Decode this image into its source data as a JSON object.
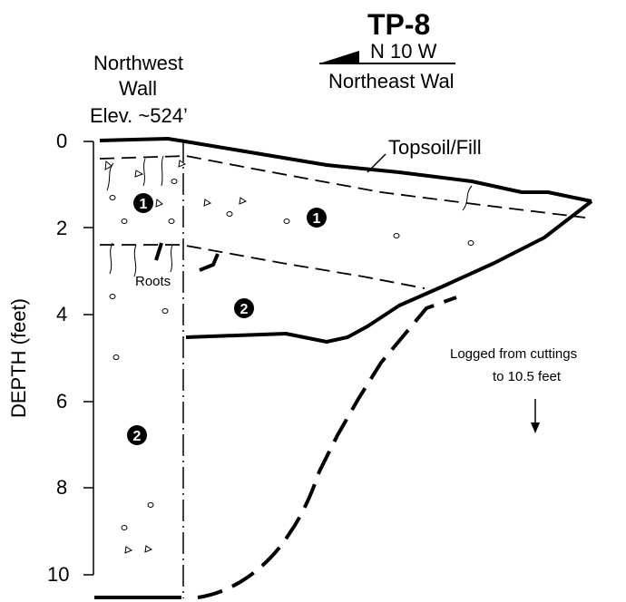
{
  "title": "TP-8",
  "orientation": {
    "bearing": "N 10 W",
    "wall": "Northeast Wal"
  },
  "left_wall": {
    "line1": "Northwest",
    "line2": "Wall",
    "elevation": "Elev. ~524’"
  },
  "axis": {
    "label": "DEPTH (feet)",
    "ticks": [
      "0",
      "2",
      "4",
      "6",
      "8",
      "10"
    ]
  },
  "annotations": {
    "topsoil": "Topsoil/Fill",
    "roots": "Roots",
    "cuttings_line1": "Logged from cuttings",
    "cuttings_line2": "to 10.5 feet"
  },
  "units": {
    "unit1": "1",
    "unit2": "2"
  },
  "colors": {
    "ink": "#000000",
    "paper": "#ffffff"
  }
}
